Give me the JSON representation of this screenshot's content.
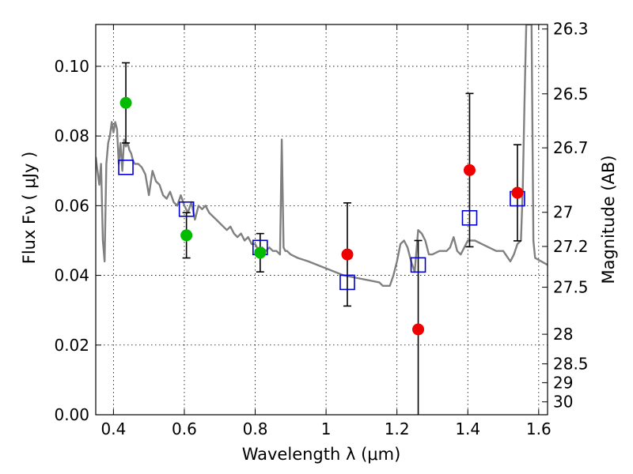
{
  "chart_data": {
    "type": "scatter",
    "title": "",
    "xlabel": "Wavelength  λ (μm)",
    "ylabel": "Flux  Fν  ( μJy )",
    "y2label": "Magnitude (AB)",
    "xlim": [
      0.35,
      1.625
    ],
    "ylim": [
      0.0,
      0.112
    ],
    "grid": true,
    "x_ticks": [
      0.4,
      0.6,
      0.8,
      1.0,
      1.2,
      1.4,
      1.6
    ],
    "x_tick_labels": [
      "0.4",
      "0.6",
      "0.8",
      "1",
      "1.2",
      "1.4",
      "1.6"
    ],
    "y_ticks": [
      0.0,
      0.02,
      0.04,
      0.06,
      0.08,
      0.1
    ],
    "y_tick_labels": [
      "0.00",
      "0.02",
      "0.04",
      "0.06",
      "0.08",
      "0.10"
    ],
    "y2_ticks": [
      {
        "label": "26.3",
        "flux": 0.1107
      },
      {
        "label": "26.5",
        "flux": 0.0921
      },
      {
        "label": "26.7",
        "flux": 0.0766
      },
      {
        "label": "27",
        "flux": 0.0581
      },
      {
        "label": "27.2",
        "flux": 0.0483
      },
      {
        "label": "27.5",
        "flux": 0.0366
      },
      {
        "label": "28",
        "flux": 0.0231
      },
      {
        "label": "28.5",
        "flux": 0.0146
      },
      {
        "label": "29",
        "flux": 0.0092
      },
      {
        "label": "30",
        "flux": 0.0037
      }
    ],
    "colors": {
      "model": "#808080",
      "green": "#00bb00",
      "red": "#ee0000",
      "square": "#0000cc",
      "errorbar": "#000000"
    },
    "series": [
      {
        "kind": "model_sed",
        "x": [
          0.35,
          0.355,
          0.36,
          0.365,
          0.37,
          0.375,
          0.38,
          0.385,
          0.39,
          0.395,
          0.4,
          0.405,
          0.41,
          0.415,
          0.42,
          0.425,
          0.43,
          0.435,
          0.44,
          0.445,
          0.45,
          0.455,
          0.46,
          0.47,
          0.48,
          0.49,
          0.5,
          0.51,
          0.52,
          0.53,
          0.54,
          0.55,
          0.56,
          0.57,
          0.58,
          0.59,
          0.6,
          0.61,
          0.62,
          0.63,
          0.64,
          0.65,
          0.66,
          0.67,
          0.68,
          0.69,
          0.7,
          0.71,
          0.72,
          0.73,
          0.74,
          0.75,
          0.76,
          0.77,
          0.78,
          0.79,
          0.8,
          0.81,
          0.82,
          0.83,
          0.84,
          0.85,
          0.86,
          0.87,
          0.875,
          0.88,
          0.885,
          0.89,
          0.9,
          0.92,
          0.95,
          1.0,
          1.05,
          1.1,
          1.15,
          1.16,
          1.17,
          1.18,
          1.19,
          1.2,
          1.21,
          1.22,
          1.23,
          1.24,
          1.25,
          1.26,
          1.27,
          1.28,
          1.29,
          1.3,
          1.32,
          1.34,
          1.35,
          1.36,
          1.37,
          1.38,
          1.4,
          1.42,
          1.44,
          1.46,
          1.48,
          1.5,
          1.52,
          1.53,
          1.54,
          1.55,
          1.555,
          1.56,
          1.565,
          1.57,
          1.575,
          1.58,
          1.585,
          1.59,
          1.625
        ],
        "y": [
          0.074,
          0.07,
          0.066,
          0.072,
          0.05,
          0.044,
          0.072,
          0.078,
          0.08,
          0.084,
          0.081,
          0.084,
          0.082,
          0.072,
          0.078,
          0.07,
          0.079,
          0.077,
          0.078,
          0.076,
          0.075,
          0.073,
          0.072,
          0.072,
          0.071,
          0.069,
          0.063,
          0.07,
          0.067,
          0.066,
          0.063,
          0.062,
          0.064,
          0.061,
          0.06,
          0.063,
          0.06,
          0.058,
          0.061,
          0.056,
          0.06,
          0.059,
          0.06,
          0.058,
          0.057,
          0.056,
          0.055,
          0.054,
          0.053,
          0.054,
          0.052,
          0.051,
          0.052,
          0.05,
          0.051,
          0.049,
          0.049,
          0.047,
          0.048,
          0.047,
          0.048,
          0.047,
          0.047,
          0.046,
          0.079,
          0.048,
          0.047,
          0.047,
          0.046,
          0.045,
          0.044,
          0.042,
          0.04,
          0.039,
          0.038,
          0.037,
          0.037,
          0.037,
          0.04,
          0.044,
          0.049,
          0.05,
          0.048,
          0.044,
          0.041,
          0.053,
          0.052,
          0.05,
          0.046,
          0.046,
          0.047,
          0.047,
          0.048,
          0.051,
          0.047,
          0.046,
          0.05,
          0.05,
          0.049,
          0.048,
          0.047,
          0.047,
          0.044,
          0.046,
          0.049,
          0.05,
          0.065,
          0.09,
          0.112,
          0.112,
          0.112,
          0.112,
          0.05,
          0.045,
          0.043
        ]
      },
      {
        "kind": "points",
        "name": "",
        "marker": "circle",
        "color": "green",
        "points": [
          {
            "x": 0.435,
            "y": 0.0895,
            "err": 0.0115
          },
          {
            "x": 0.606,
            "y": 0.0515,
            "err": 0.0065
          },
          {
            "x": 0.814,
            "y": 0.0465,
            "err": 0.0055
          }
        ]
      },
      {
        "kind": "points",
        "name": "",
        "marker": "circle",
        "color": "red",
        "points": [
          {
            "x": 1.06,
            "y": 0.046,
            "err": 0.0148
          },
          {
            "x": 1.26,
            "y": 0.0245,
            "err": 0.0255
          },
          {
            "x": 1.405,
            "y": 0.0702,
            "err": 0.022
          },
          {
            "x": 1.54,
            "y": 0.0637,
            "err": 0.0138
          }
        ]
      },
      {
        "kind": "points",
        "name": "",
        "marker": "open-square",
        "color": "square",
        "points": [
          {
            "x": 0.435,
            "y": 0.071
          },
          {
            "x": 0.606,
            "y": 0.059
          },
          {
            "x": 0.814,
            "y": 0.048
          },
          {
            "x": 1.06,
            "y": 0.038
          },
          {
            "x": 1.26,
            "y": 0.043
          },
          {
            "x": 1.405,
            "y": 0.0565
          },
          {
            "x": 1.54,
            "y": 0.062
          }
        ]
      }
    ]
  }
}
